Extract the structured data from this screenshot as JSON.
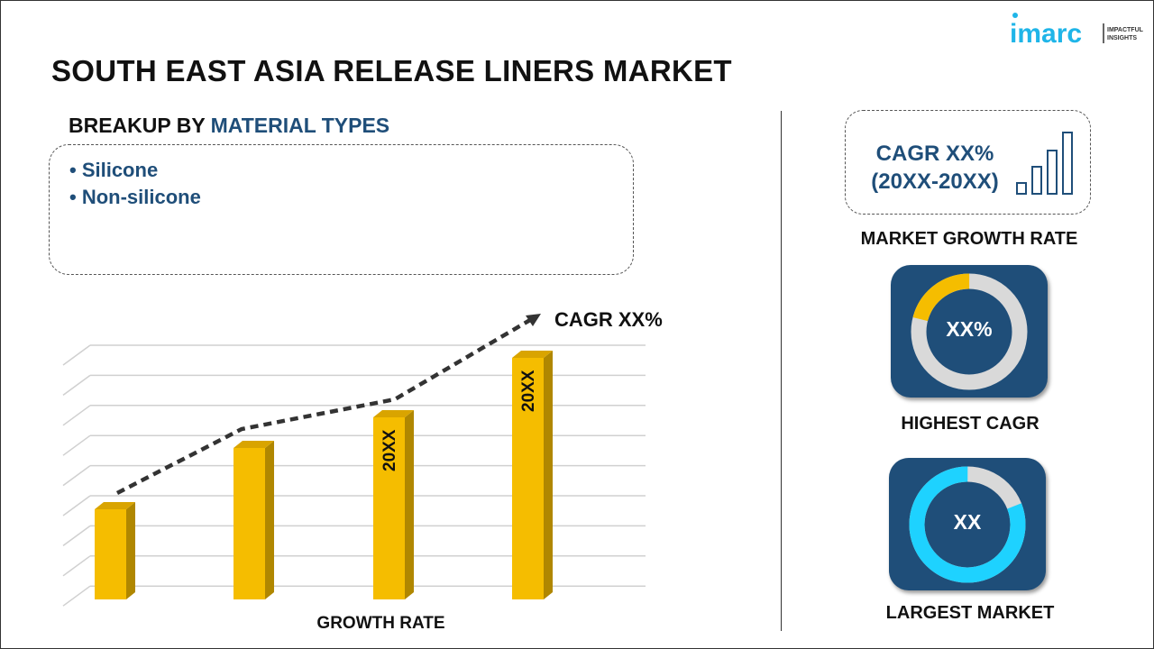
{
  "title": "SOUTH EAST ASIA RELEASE LINERS MARKET",
  "logo": {
    "brand": "imarc",
    "tagline_1": "IMPACTFUL",
    "tagline_2": "INSIGHTS",
    "color": "#1fb5e8"
  },
  "breakup": {
    "prefix": "BREAKUP BY ",
    "highlight": "MATERIAL TYPES",
    "items": [
      "• Silicone",
      "• Non-silicone"
    ]
  },
  "chart": {
    "cagr_label": "CAGR XX%",
    "x_label": "GROWTH RATE",
    "bar_labels": [
      "",
      "",
      "20XX",
      "20XX"
    ],
    "bar_color": "#f5bd00"
  },
  "market_growth": {
    "cagr_line1": "CAGR XX%",
    "cagr_line2": "(20XX-20XX)",
    "label": "MARKET GROWTH RATE",
    "icon": "bar-chart-icon"
  },
  "highest_cagr": {
    "value": "XX%",
    "label": "HIGHEST CAGR",
    "fill_fraction": 0.21,
    "color": "#f5bd00"
  },
  "largest_market": {
    "value": "XX",
    "label": "LARGEST MARKET",
    "fill_fraction": 0.81,
    "color": "#1ed2ff"
  },
  "colors": {
    "navy": "#1f4e79",
    "ring_bg": "#d9d9d9"
  }
}
